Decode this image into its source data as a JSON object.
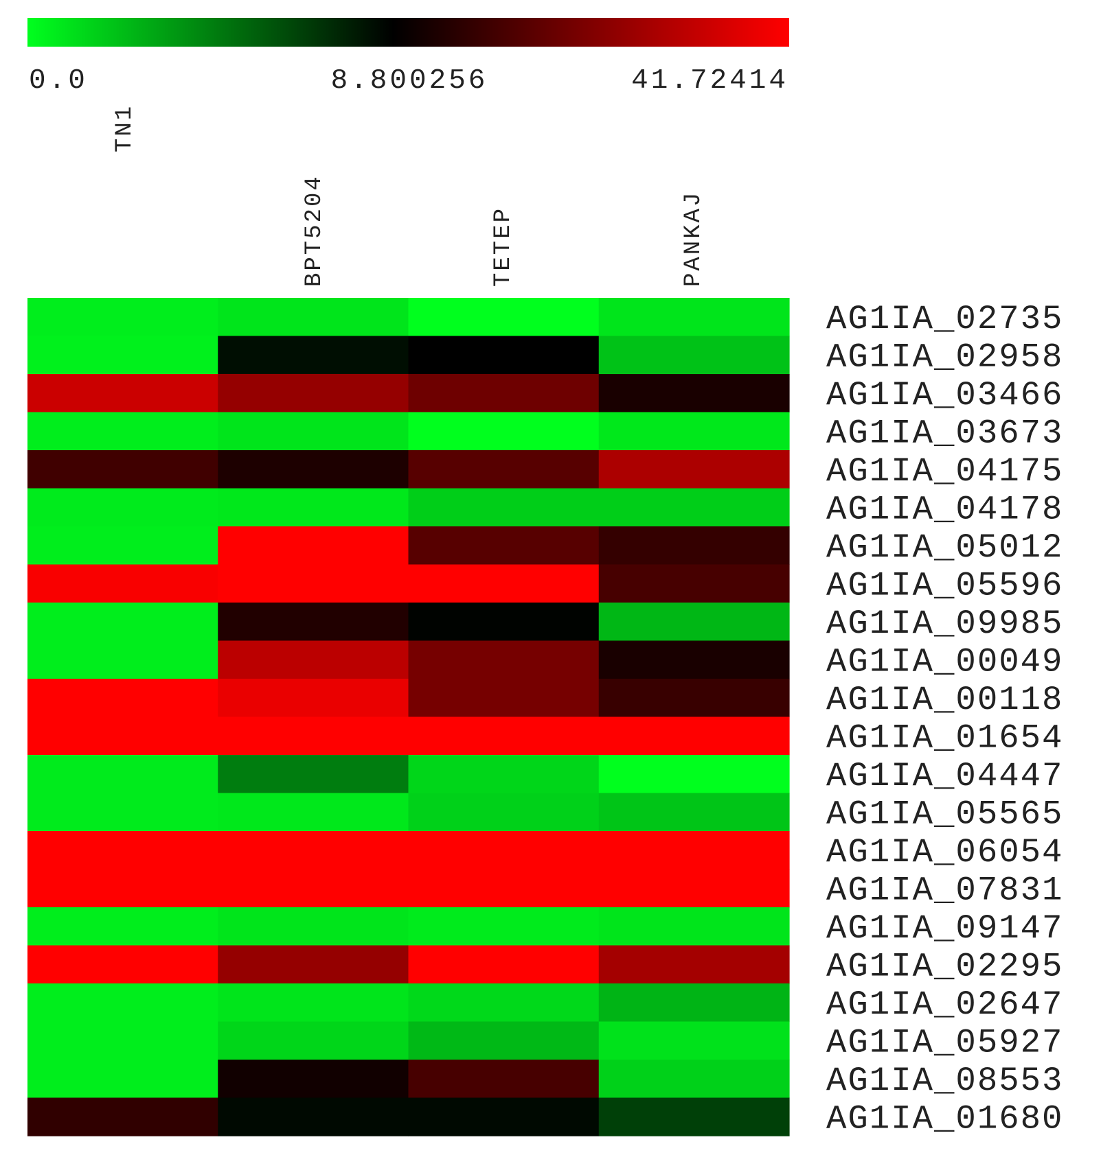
{
  "chart_data": {
    "type": "heatmap",
    "color_scale": {
      "min_label": "0.0",
      "mid_label": "8.800256",
      "max_label": "41.72414",
      "min": 0.0,
      "mid": 8.800256,
      "max": 41.72414,
      "low_color": "#00ff1e",
      "mid_color": "#000000",
      "high_color": "#ff0000"
    },
    "columns": [
      "TN1",
      "BPT5204",
      "TETEP",
      "PANKAJ"
    ],
    "rows": [
      "AG1IA_02735",
      "AG1IA_02958",
      "AG1IA_03466",
      "AG1IA_03673",
      "AG1IA_04175",
      "AG1IA_04178",
      "AG1IA_05012",
      "AG1IA_05596",
      "AG1IA_09985",
      "AG1IA_00049",
      "AG1IA_00118",
      "AG1IA_01654",
      "AG1IA_04447",
      "AG1IA_05565",
      "AG1IA_06054",
      "AG1IA_07831",
      "AG1IA_09147",
      "AG1IA_02295",
      "AG1IA_02647",
      "AG1IA_05927",
      "AG1IA_08553",
      "AG1IA_01680"
    ],
    "values": [
      [
        0.6,
        0.9,
        0.0,
        0.9
      ],
      [
        0.5,
        8.3,
        8.8,
        2.1
      ],
      [
        35.0,
        28.0,
        23.0,
        12.0
      ],
      [
        0.6,
        0.9,
        0.0,
        0.8
      ],
      [
        17.0,
        12.5,
        20.0,
        31.0
      ],
      [
        0.7,
        0.8,
        1.7,
        1.7
      ],
      [
        0.6,
        41.72414,
        20.0,
        15.5
      ],
      [
        41.0,
        41.72414,
        41.72414,
        18.0
      ],
      [
        0.6,
        13.0,
        8.7,
        2.5
      ],
      [
        0.6,
        33.0,
        24.0,
        12.0
      ],
      [
        41.72414,
        39.0,
        24.0,
        16.0
      ],
      [
        41.72414,
        41.72414,
        41.72414,
        41.72414
      ],
      [
        0.7,
        4.5,
        1.4,
        0.0
      ],
      [
        0.7,
        0.8,
        1.6,
        2.0
      ],
      [
        41.72414,
        41.72414,
        41.72414,
        41.72414
      ],
      [
        41.72414,
        41.72414,
        41.72414,
        41.72414
      ],
      [
        0.6,
        0.9,
        0.7,
        0.9
      ],
      [
        41.72414,
        28.0,
        41.72414,
        30.0
      ],
      [
        0.6,
        0.9,
        1.3,
        2.6
      ],
      [
        0.6,
        1.4,
        2.4,
        1.0
      ],
      [
        0.6,
        11.0,
        18.0,
        1.6
      ],
      [
        15.0,
        8.5,
        8.5,
        6.6
      ]
    ],
    "grid": false,
    "legend": "color bar at top"
  }
}
